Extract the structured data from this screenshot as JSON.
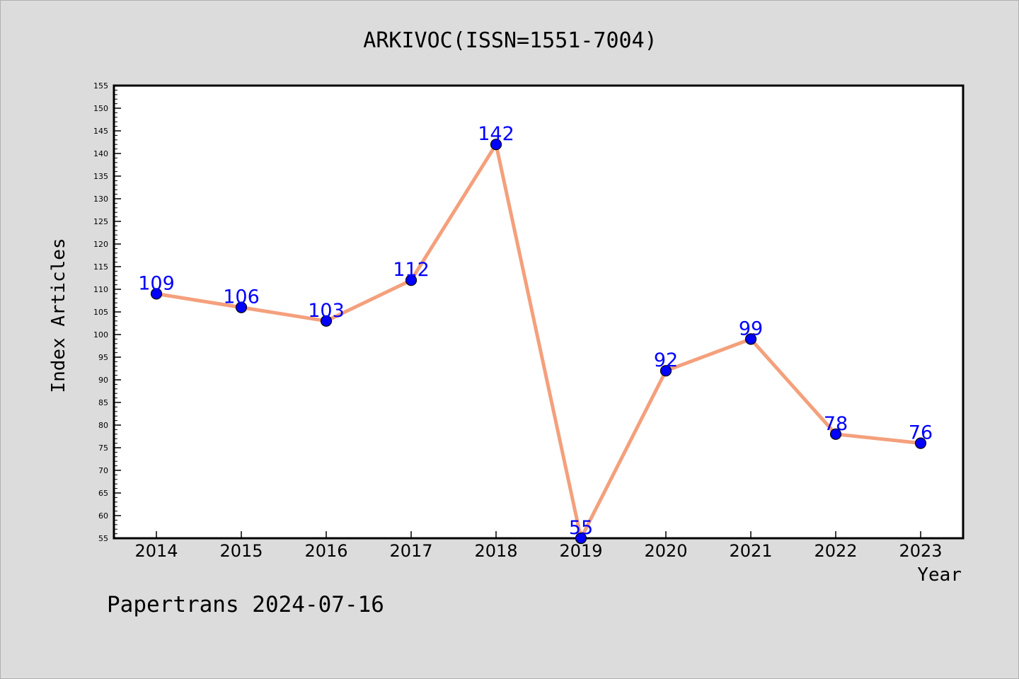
{
  "chart_data": {
    "type": "line",
    "title": "ARKIVOC(ISSN=1551-7004)",
    "xlabel": "Year",
    "ylabel": "Index Articles",
    "categories": [
      "2014",
      "2015",
      "2016",
      "2017",
      "2018",
      "2019",
      "2020",
      "2021",
      "2022",
      "2023"
    ],
    "series": [
      {
        "values": [
          109,
          106,
          103,
          112,
          142,
          55,
          92,
          99,
          78,
          76
        ]
      }
    ],
    "ylim": [
      55,
      155
    ],
    "yticks": [
      "55",
      "60",
      "65",
      "70",
      "75",
      "80",
      "85",
      "90",
      "95",
      "100",
      "105",
      "110",
      "115",
      "120",
      "125",
      "130",
      "135",
      "140",
      "145",
      "150",
      "155"
    ],
    "grid": false,
    "data_labels": true,
    "colors": {
      "line": "#f4a07c",
      "marker": "#0000ff",
      "label": "#0000ff",
      "background": "#dcdcdc",
      "plot_area": "#ffffff"
    }
  },
  "footer": "Papertrans 2024-07-16"
}
